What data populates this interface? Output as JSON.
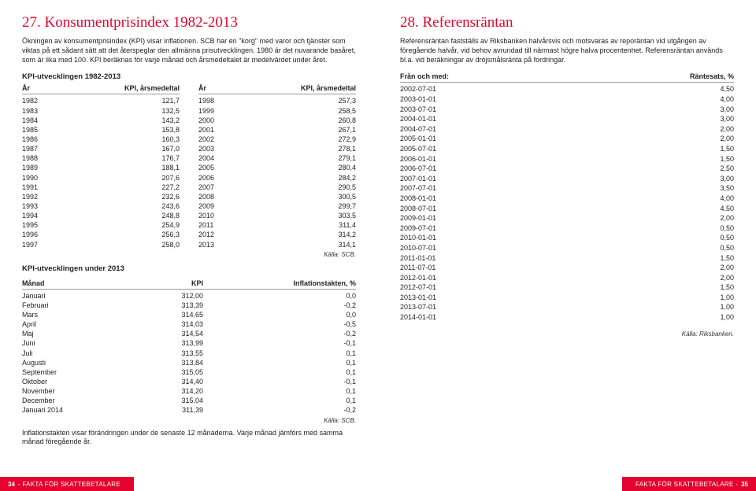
{
  "left": {
    "title": "27. Konsumentprisindex 1982-2013",
    "intro": "Ökningen av konsumentprisindex (KPI) visar inflationen. SCB har en \"korg\" med varor och tjänster som viktas på ett sådant sätt att det återspeglar den allmänna prisutvecklingen. 1980 är det nuvarande basåret, som är lika med 100. KPI beräknas för varje månad och årsmedeltalet är medelvärdet under året.",
    "kpi_subhead": "KPI-utvecklingen 1982-2013",
    "kpi_year_label": "År",
    "kpi_value_label": "KPI, årsmedeltal",
    "kpi_left": [
      {
        "y": "1982",
        "v": "121,7"
      },
      {
        "y": "1983",
        "v": "132,5"
      },
      {
        "y": "1984",
        "v": "143,2"
      },
      {
        "y": "1985",
        "v": "153,8"
      },
      {
        "y": "1986",
        "v": "160,3"
      },
      {
        "y": "1987",
        "v": "167,0"
      },
      {
        "y": "1988",
        "v": "176,7"
      },
      {
        "y": "1989",
        "v": "188,1"
      },
      {
        "y": "1990",
        "v": "207,6"
      },
      {
        "y": "1991",
        "v": "227,2"
      },
      {
        "y": "1992",
        "v": "232,6"
      },
      {
        "y": "1993",
        "v": "243,6"
      },
      {
        "y": "1994",
        "v": "248,8"
      },
      {
        "y": "1995",
        "v": "254,9"
      },
      {
        "y": "1996",
        "v": "256,3"
      },
      {
        "y": "1997",
        "v": "258,0"
      }
    ],
    "kpi_right": [
      {
        "y": "1998",
        "v": "257,3"
      },
      {
        "y": "1999",
        "v": "258,5"
      },
      {
        "y": "2000",
        "v": "260,8"
      },
      {
        "y": "2001",
        "v": "267,1"
      },
      {
        "y": "2002",
        "v": "272,9"
      },
      {
        "y": "2003",
        "v": "278,1"
      },
      {
        "y": "2004",
        "v": "279,1"
      },
      {
        "y": "2005",
        "v": "280,4"
      },
      {
        "y": "2006",
        "v": "284,2"
      },
      {
        "y": "2007",
        "v": "290,5"
      },
      {
        "y": "2008",
        "v": "300,5"
      },
      {
        "y": "2009",
        "v": "299,7"
      },
      {
        "y": "2010",
        "v": "303,5"
      },
      {
        "y": "2011",
        "v": "311,4"
      },
      {
        "y": "2012",
        "v": "314,2"
      },
      {
        "y": "2013",
        "v": "314,1"
      }
    ],
    "source_scb": "Källa: SCB.",
    "month_subhead": "KPI-utvecklingen under 2013",
    "month_hdr": {
      "month": "Månad",
      "kpi": "KPI",
      "inf": "Inflationstakten, %"
    },
    "months": [
      {
        "m": "Januari",
        "k": "312,00",
        "i": "0,0"
      },
      {
        "m": "Februari",
        "k": "313,39",
        "i": "-0,2"
      },
      {
        "m": "Mars",
        "k": "314,65",
        "i": "0,0"
      },
      {
        "m": "April",
        "k": "314,03",
        "i": "-0,5"
      },
      {
        "m": "Maj",
        "k": "314,54",
        "i": "-0,2"
      },
      {
        "m": "Juni",
        "k": "313,99",
        "i": "-0,1"
      },
      {
        "m": "Juli",
        "k": "313,55",
        "i": "0,1"
      },
      {
        "m": "Augusti",
        "k": "313,84",
        "i": "0,1"
      },
      {
        "m": "September",
        "k": "315,05",
        "i": "0,1"
      },
      {
        "m": "Oktober",
        "k": "314,40",
        "i": "-0,1"
      },
      {
        "m": "November",
        "k": "314,20",
        "i": "0,1"
      },
      {
        "m": "December",
        "k": "315,04",
        "i": "0,1"
      },
      {
        "m": "Januari 2014",
        "k": "311,39",
        "i": "-0,2"
      }
    ],
    "note": "Inflationstakten visar förändringen under de senaste 12 månaderna. Varje månad jämförs med samma månad föregående år.",
    "footer_page": "34",
    "footer_title": "- FAKTA FÖR SKATTEBETALARE"
  },
  "right": {
    "title": "28. Referensräntan",
    "intro": "Referensräntan fastställs av Riksbanken halvårsvis och motsvaras av reporäntan vid utgången av föregående halvår, vid behov avrundad till närmast högre halva procentenhet. Referensräntan används bl.a. vid beräkningar av dröjsmålsränta på fordringar.",
    "hdr": {
      "date": "Från och med:",
      "rate": "Räntesats, %"
    },
    "rows": [
      {
        "d": "2002-07-01",
        "r": "4,50"
      },
      {
        "d": "2003-01-01",
        "r": "4,00"
      },
      {
        "d": "2003-07-01",
        "r": "3,00"
      },
      {
        "d": "2004-01-01",
        "r": "3,00"
      },
      {
        "d": "2004-07-01",
        "r": "2,00"
      },
      {
        "d": "2005-01-01",
        "r": "2,00"
      },
      {
        "d": "2005-07-01",
        "r": "1,50"
      },
      {
        "d": "2006-01-01",
        "r": "1,50"
      },
      {
        "d": "2006-07-01",
        "r": "2,50"
      },
      {
        "d": "2007-01-01",
        "r": "3,00"
      },
      {
        "d": "2007-07-01",
        "r": "3,50"
      },
      {
        "d": "2008-01-01",
        "r": "4,00"
      },
      {
        "d": "2008-07-01",
        "r": "4,50"
      },
      {
        "d": "2009-01-01",
        "r": "2,00"
      },
      {
        "d": "2009-07-01",
        "r": "0,50"
      },
      {
        "d": "2010-01-01",
        "r": "0,50"
      },
      {
        "d": "2010-07-01",
        "r": "0,50"
      },
      {
        "d": "2011-01-01",
        "r": "1,50"
      },
      {
        "d": "2011-07-01",
        "r": "2,00"
      },
      {
        "d": "2012-01-01",
        "r": "2,00"
      },
      {
        "d": "2012-07-01",
        "r": "1,50"
      },
      {
        "d": "2013-01-01",
        "r": "1,00"
      },
      {
        "d": "2013-07-01",
        "r": "1,00"
      },
      {
        "d": "2014-01-01",
        "r": "1,00"
      }
    ],
    "source": "Källa: Riksbanken.",
    "footer_title": "FAKTA FÖR SKATTEBETALARE -",
    "footer_page": "35"
  }
}
